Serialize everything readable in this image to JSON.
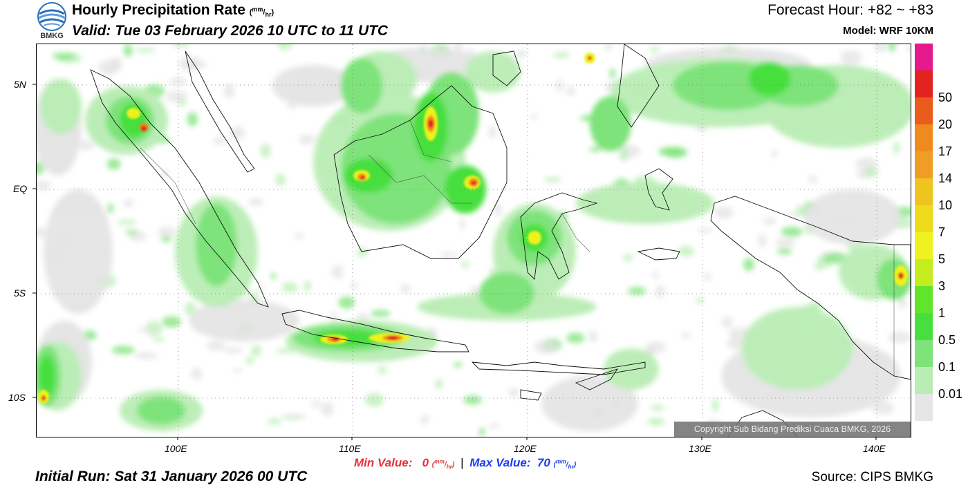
{
  "header": {
    "title": "Hourly Precipitation Rate",
    "title_unit_top": "mm",
    "title_unit_bottom": "hr",
    "valid": "Valid: Tue 03 February 2026 10 UTC to 11 UTC",
    "forecast_hour": "Forecast Hour: +82 ~ +83",
    "model": "Model: WRF 10KM",
    "logo_text": "BMKG"
  },
  "map": {
    "lat_labels": [
      "5N",
      "EQ",
      "5S",
      "10S"
    ],
    "lon_labels": [
      "100E",
      "110E",
      "120E",
      "130E",
      "140E"
    ],
    "copyright": "Copyright Sub Bidang Prediksi Cuaca BMKG, 2026",
    "precip_color_low": "#e6e6e6",
    "precip_color_high": "#e8322a"
  },
  "colorbar": {
    "colors": [
      "#e3198c",
      "#e2231f",
      "#e95c1e",
      "#ef8a1e",
      "#ef9d24",
      "#efc41e",
      "#eedc1c",
      "#eef21e",
      "#c4ec1e",
      "#61e52b",
      "#47df3e",
      "#7ee37a",
      "#b9edb4",
      "#e6e6e6"
    ],
    "labels": [
      "50",
      "20",
      "17",
      "14",
      "10",
      "7",
      "5",
      "3",
      "1",
      "0.5",
      "0.1",
      "0.01"
    ]
  },
  "footer": {
    "min_text": "Min Value:",
    "min_value": "0",
    "max_text": "Max Value:",
    "max_value": "70",
    "unit_top": "mm",
    "unit_bottom": "hr",
    "initial_run": "Initial Run: Sat 31 January 2026 00 UTC",
    "source": "Source: CIPS BMKG"
  }
}
